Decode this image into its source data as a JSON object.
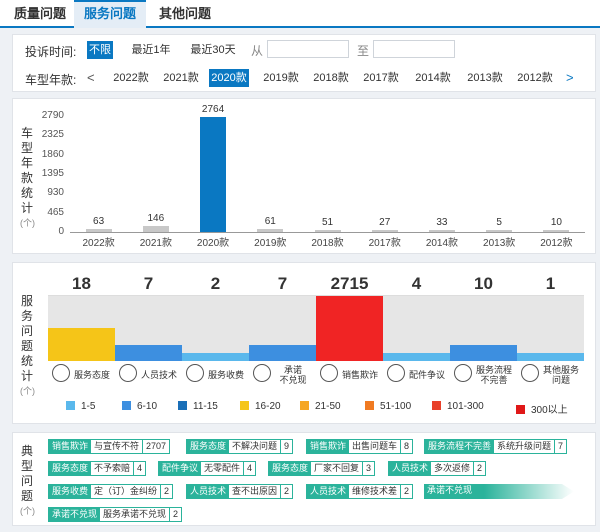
{
  "tabs": [
    {
      "label": "质量问题",
      "active": false
    },
    {
      "label": "服务问题",
      "active": true
    },
    {
      "label": "其他问题",
      "active": false
    }
  ],
  "filters": {
    "time_label": "投诉时间:",
    "time_options": [
      "不限",
      "最近1年",
      "最近30天"
    ],
    "time_selected": "不限",
    "from_label": "从",
    "to_label": "至",
    "from_value": "",
    "to_value": "",
    "year_label": "车型年款:",
    "prev_arrow": "<",
    "next_arrow": ">",
    "years": [
      "2022款",
      "2021款",
      "2020款",
      "2019款",
      "2018款",
      "2017款",
      "2014款",
      "2013款",
      "2012款"
    ],
    "year_selected": "2020款"
  },
  "year_chart_title_chars": [
    "车",
    "型",
    "年",
    "款",
    "统",
    "计"
  ],
  "unit_label": "(个)",
  "chart_data": [
    {
      "type": "bar",
      "categories": [
        "2022款",
        "2021款",
        "2020款",
        "2019款",
        "2018款",
        "2017款",
        "2014款",
        "2013款",
        "2012款"
      ],
      "values": [
        63,
        146,
        2764,
        61,
        51,
        27,
        33,
        5,
        10
      ],
      "yticks": [
        "2790",
        "2325",
        "1860",
        "1395",
        "930",
        "465",
        "0"
      ],
      "ylim": [
        0,
        2790
      ],
      "highlight": "2020款",
      "colors": {
        "normal": "#c8c8c8",
        "highlight": "#0a78c2"
      }
    },
    {
      "type": "heatmap",
      "categories": [
        "服务态度",
        "人员技术",
        "服务收费",
        "承诺不兑现",
        "销售欺诈",
        "配件争议",
        "服务流程不完善",
        "其他服务问题"
      ],
      "values": [
        18,
        7,
        2,
        7,
        2715,
        4,
        10,
        1
      ],
      "fill_fraction": [
        0.5,
        0.25,
        0.12,
        0.25,
        1.0,
        0.12,
        0.25,
        0.12
      ],
      "colors": [
        "#f5c518",
        "#3d8fe0",
        "#5ab8ec",
        "#3d8fe0",
        "#f02424",
        "#5ab8ec",
        "#3d8fe0",
        "#5ab8ec"
      ]
    }
  ],
  "service_chart_title_chars": [
    "服",
    "务",
    "问",
    "题",
    "统",
    "计"
  ],
  "service_categories": [
    {
      "label1": "服务态度",
      "label2": "",
      "icon": "smiley-icon"
    },
    {
      "label1": "人员技术",
      "label2": "",
      "icon": "tools-icon"
    },
    {
      "label1": "服务收费",
      "label2": "",
      "icon": "money-bag-icon"
    },
    {
      "label1": "承诺",
      "label2": "不兑现",
      "icon": "shield-icon"
    },
    {
      "label1": "销售欺诈",
      "label2": "",
      "icon": "car-icon"
    },
    {
      "label1": "配件争议",
      "label2": "",
      "icon": "gear-icon"
    },
    {
      "label1": "服务流程",
      "label2": "不完善",
      "icon": "flow-icon"
    },
    {
      "label1": "其他服务",
      "label2": "问题",
      "icon": "list-icon"
    }
  ],
  "legend": [
    {
      "label": "1-5",
      "color": "#5ab8ec"
    },
    {
      "label": "6-10",
      "color": "#3d8fe0"
    },
    {
      "label": "11-15",
      "color": "#1a6fb8"
    },
    {
      "label": "16-20",
      "color": "#f5c518"
    },
    {
      "label": "21-50",
      "color": "#f5a623"
    },
    {
      "label": "51-100",
      "color": "#f07a22"
    },
    {
      "label": "101-300",
      "color": "#e8402a"
    },
    {
      "label": "300以上",
      "color": "#e01818"
    }
  ],
  "typical_title_chars": [
    "典",
    "型",
    "问",
    "题"
  ],
  "typical_rows": [
    [
      {
        "cat": "销售欺诈",
        "desc": "与宣传不符",
        "count": "2707"
      },
      {
        "cat": "服务态度",
        "desc": "不解决问题",
        "count": "9"
      },
      {
        "cat": "销售欺诈",
        "desc": "出售问题车",
        "count": "8"
      },
      {
        "cat": "服务流程不完善",
        "desc": "系统升级问题",
        "count": "7"
      }
    ],
    [
      {
        "cat": "服务态度",
        "desc": "不予索赔",
        "count": "4"
      },
      {
        "cat": "配件争议",
        "desc": "无零配件",
        "count": "4"
      },
      {
        "cat": "服务态度",
        "desc": "厂家不回复",
        "count": "3"
      },
      {
        "cat": "人员技术",
        "desc": "多次返修",
        "count": "2"
      }
    ],
    [
      {
        "cat": "服务收费",
        "desc": "定（订）金纠纷",
        "count": "2"
      },
      {
        "cat": "人员技术",
        "desc": "查不出原因",
        "count": "2"
      },
      {
        "cat": "人员技术",
        "desc": "维修技术差",
        "count": "2"
      },
      {
        "cat": "承诺不兑现",
        "desc": "",
        "count": ""
      }
    ],
    [
      {
        "cat": "承诺不兑现",
        "desc": "服务承诺不兑现",
        "count": "2"
      }
    ]
  ]
}
